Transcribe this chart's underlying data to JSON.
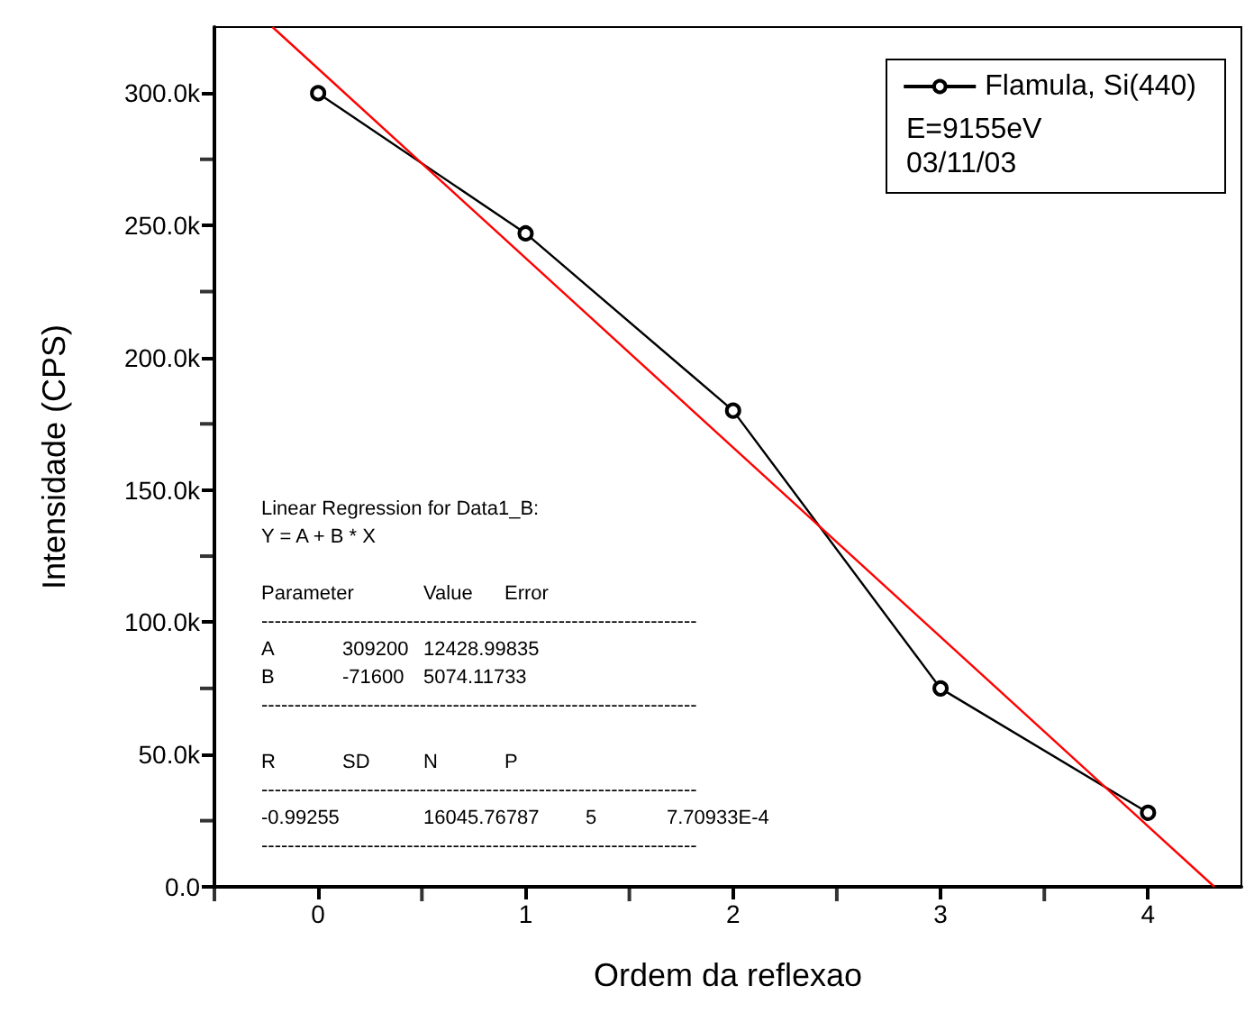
{
  "chart_data": {
    "type": "line",
    "xlabel": "Ordem da reflexao",
    "ylabel": "Intensidade (CPS)",
    "x": [
      0,
      1,
      2,
      3,
      4
    ],
    "series": [
      {
        "name": "Flamula, Si(440)",
        "color": "#000000",
        "values": [
          300000,
          247000,
          180000,
          75000,
          28000
        ],
        "marker": "circle"
      },
      {
        "type": "line",
        "color": "#ff0000",
        "x": [
          -0.22,
          4.32
        ],
        "values": [
          325000,
          0
        ],
        "marker": "none"
      }
    ],
    "xlim": [
      -0.5,
      4.45
    ],
    "xticks": [
      0,
      1,
      2,
      3,
      4
    ],
    "ylim": [
      0,
      325000
    ],
    "yticks": [
      {
        "value": 0,
        "label": "0.0"
      },
      {
        "value": 50000,
        "label": "50.0k"
      },
      {
        "value": 100000,
        "label": "100.0k"
      },
      {
        "value": 150000,
        "label": "150.0k"
      },
      {
        "value": 200000,
        "label": "200.0k"
      },
      {
        "value": 250000,
        "label": "250.0k"
      },
      {
        "value": 300000,
        "label": "300.0k"
      }
    ],
    "legend": "top right",
    "grid": false,
    "annotations": [
      "E=9155eV",
      "03/11/03",
      "Linear Regression for Data1_B:\nY = A + B * X\n\nParameter\t\tValue\tError\n------------------------------------------------------------------\nA\t309200\t12428.99835\nB\t-71600\t5074.11733\n------------------------------------------------------------------\n\nR\tSD\tN\tP\n------------------------------------------------------------------\n-0.99255\t\t16045.76787\t\t5\t7.70933E-4\n------------------------------------------------------------------"
    ]
  }
}
